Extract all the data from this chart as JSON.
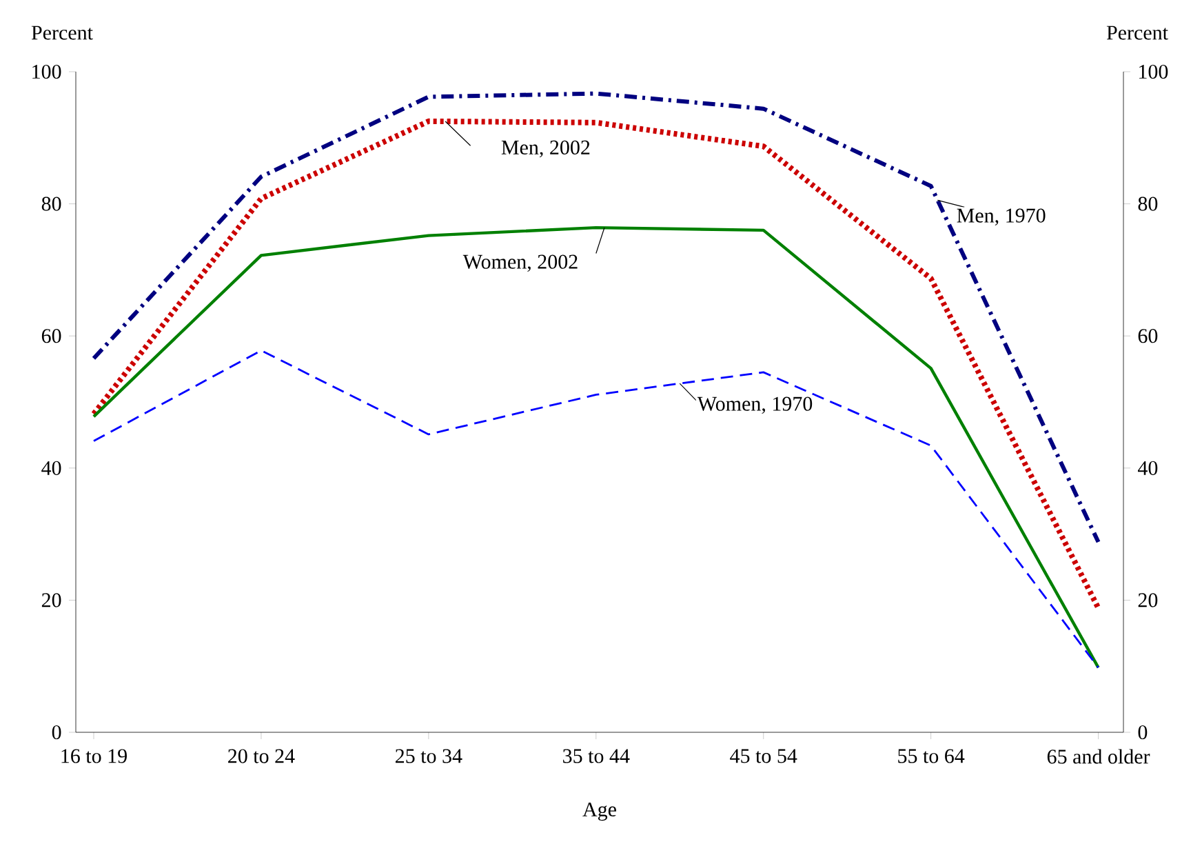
{
  "chart_data": {
    "type": "line",
    "xlabel": "Age",
    "ylabel": "Percent",
    "y2label": "Percent",
    "categories": [
      "16 to 19",
      "20 to 24",
      "25 to 34",
      "35 to 44",
      "45 to 54",
      "55 to 64",
      "65 and older"
    ],
    "ylim": [
      0,
      100
    ],
    "yticks": [
      0,
      20,
      40,
      60,
      80,
      100
    ],
    "y2lim": [
      0,
      100
    ],
    "y2ticks": [
      0,
      20,
      40,
      60,
      80,
      100
    ],
    "grid": false,
    "legend": false,
    "series": [
      {
        "name": "Men, 1970",
        "color": "#000080",
        "line_style": "dashdot",
        "values": [
          56.6,
          84.1,
          96.2,
          96.7,
          94.4,
          82.7,
          28.8
        ]
      },
      {
        "name": "Men, 2002",
        "color": "#cc0000",
        "line_style": "dotted",
        "values": [
          48.2,
          80.8,
          92.5,
          92.3,
          88.7,
          68.7,
          18.8
        ]
      },
      {
        "name": "Women, 2002",
        "color": "#008000",
        "line_style": "solid",
        "values": [
          47.8,
          72.2,
          75.2,
          76.4,
          76.0,
          55.1,
          9.8
        ]
      },
      {
        "name": "Women, 1970",
        "color": "#0000ff",
        "line_style": "dashed",
        "values": [
          44.1,
          57.8,
          45.1,
          51.1,
          54.5,
          43.4,
          9.8
        ]
      }
    ]
  }
}
